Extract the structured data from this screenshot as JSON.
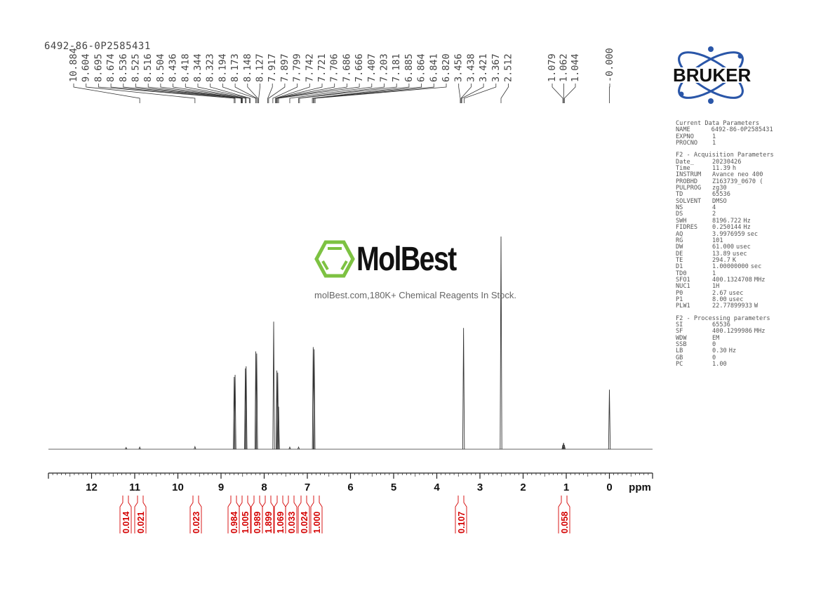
{
  "sample_name": "6492-86-0P2585431",
  "logo": {
    "brand": "BRUKER",
    "watermark": "MolBest",
    "watermark_tagline": "molBest.com,180K+ Chemical Reagents In Stock."
  },
  "parameters": {
    "current": {
      "title": "Current Data Parameters",
      "rows": [
        {
          "name": "NAME",
          "value": "6492-86-0P2585431",
          "unit": ""
        },
        {
          "name": "EXPNO",
          "value": "1",
          "unit": ""
        },
        {
          "name": "PROCNO",
          "value": "1",
          "unit": ""
        }
      ]
    },
    "acquisition": {
      "title": "F2 - Acquisition Parameters",
      "rows": [
        {
          "name": "Date_",
          "value": "20230426",
          "unit": ""
        },
        {
          "name": "Time",
          "value": "11.39",
          "unit": "h"
        },
        {
          "name": "INSTRUM",
          "value": "Avance neo 400",
          "unit": ""
        },
        {
          "name": "PROBHD",
          "value": "Z163739_0670 (",
          "unit": ""
        },
        {
          "name": "PULPROG",
          "value": "zg30",
          "unit": ""
        },
        {
          "name": "TD",
          "value": "65536",
          "unit": ""
        },
        {
          "name": "SOLVENT",
          "value": "DMSO",
          "unit": ""
        },
        {
          "name": "NS",
          "value": "4",
          "unit": ""
        },
        {
          "name": "DS",
          "value": "2",
          "unit": ""
        },
        {
          "name": "SWH",
          "value": "8196.722",
          "unit": "Hz"
        },
        {
          "name": "FIDRES",
          "value": "0.250144",
          "unit": "Hz"
        },
        {
          "name": "AQ",
          "value": "3.9976959",
          "unit": "sec"
        },
        {
          "name": "RG",
          "value": "101",
          "unit": ""
        },
        {
          "name": "DW",
          "value": "61.000",
          "unit": "usec"
        },
        {
          "name": "DE",
          "value": "13.89",
          "unit": "usec"
        },
        {
          "name": "TE",
          "value": "294.7",
          "unit": "K"
        },
        {
          "name": "D1",
          "value": "1.00000000",
          "unit": "sec"
        },
        {
          "name": "TD0",
          "value": "1",
          "unit": ""
        },
        {
          "name": "SFO1",
          "value": "400.1324708",
          "unit": "MHz"
        },
        {
          "name": "NUC1",
          "value": "1H",
          "unit": ""
        },
        {
          "name": "P0",
          "value": "2.67",
          "unit": "usec"
        },
        {
          "name": "P1",
          "value": "8.00",
          "unit": "usec"
        },
        {
          "name": "PLW1",
          "value": "22.77899933",
          "unit": "W"
        }
      ]
    },
    "processing": {
      "title": "F2 - Processing parameters",
      "rows": [
        {
          "name": "SI",
          "value": "65536",
          "unit": ""
        },
        {
          "name": "SF",
          "value": "400.1299986",
          "unit": "MHz"
        },
        {
          "name": "WDW",
          "value": "EM",
          "unit": ""
        },
        {
          "name": "SSB",
          "value": "0",
          "unit": ""
        },
        {
          "name": "LB",
          "value": "0.30",
          "unit": "Hz"
        },
        {
          "name": "GB",
          "value": "0",
          "unit": ""
        },
        {
          "name": "PC",
          "value": "1.00",
          "unit": ""
        }
      ]
    }
  },
  "chart_data": {
    "type": "line",
    "title": "",
    "xlabel": "ppm",
    "xlim": [
      13,
      -1
    ],
    "x_reversed": true,
    "x_ticks": [
      "12",
      "11",
      "10",
      "9",
      "8",
      "7",
      "6",
      "5",
      "4",
      "3",
      "2",
      "1",
      "0"
    ],
    "grid": false,
    "colors": {
      "spectrum": "#333333",
      "integral": "#d40000",
      "labels": "#444444"
    },
    "peaks": [
      {
        "ppm": 11.2,
        "intensity": 0.008
      },
      {
        "ppm": 10.884,
        "intensity": 0.01
      },
      {
        "ppm": 9.604,
        "intensity": 0.012
      },
      {
        "ppm": 8.695,
        "intensity": 0.34
      },
      {
        "ppm": 8.674,
        "intensity": 0.35
      },
      {
        "ppm": 8.436,
        "intensity": 0.38
      },
      {
        "ppm": 8.418,
        "intensity": 0.39
      },
      {
        "ppm": 8.194,
        "intensity": 0.46
      },
      {
        "ppm": 8.173,
        "intensity": 0.45
      },
      {
        "ppm": 7.78,
        "intensity": 0.6
      },
      {
        "ppm": 7.706,
        "intensity": 0.37
      },
      {
        "ppm": 7.686,
        "intensity": 0.36
      },
      {
        "ppm": 7.666,
        "intensity": 0.2
      },
      {
        "ppm": 7.407,
        "intensity": 0.01
      },
      {
        "ppm": 7.203,
        "intensity": 0.01
      },
      {
        "ppm": 6.864,
        "intensity": 0.48
      },
      {
        "ppm": 6.841,
        "intensity": 0.47
      },
      {
        "ppm": 3.38,
        "intensity": 0.57
      },
      {
        "ppm": 2.512,
        "intensity": 1.0
      },
      {
        "ppm": 1.079,
        "intensity": 0.02
      },
      {
        "ppm": 1.062,
        "intensity": 0.03
      },
      {
        "ppm": 1.044,
        "intensity": 0.02
      },
      {
        "ppm": 0.0,
        "intensity": 0.28
      }
    ],
    "peak_labels": [
      "10.884",
      "9.604",
      "8.695",
      "8.674",
      "8.536",
      "8.525",
      "8.516",
      "8.504",
      "8.436",
      "8.418",
      "8.344",
      "8.323",
      "8.194",
      "8.173",
      "8.148",
      "8.127",
      "7.917",
      "7.897",
      "7.799",
      "7.742",
      "7.721",
      "7.706",
      "7.686",
      "7.666",
      "7.407",
      "7.203",
      "7.181",
      "6.885",
      "6.864",
      "6.841",
      "6.820",
      "3.456",
      "3.438",
      "3.421",
      "3.367",
      "2.512"
    ],
    "peak_labels_right": [
      "1.079",
      "1.062",
      "1.044"
    ],
    "peak_label_zero": "-0.000",
    "integrals": [
      {
        "ppm": 11.2,
        "value": "0.014"
      },
      {
        "ppm": 10.88,
        "value": "0.021"
      },
      {
        "ppm": 9.6,
        "value": "0.023"
      },
      {
        "ppm": 8.68,
        "value": "0.984"
      },
      {
        "ppm": 8.43,
        "value": "1.005"
      },
      {
        "ppm": 8.18,
        "value": "0.989"
      },
      {
        "ppm": 7.78,
        "value": "1.899"
      },
      {
        "ppm": 7.69,
        "value": "1.069"
      },
      {
        "ppm": 7.41,
        "value": "0.033"
      },
      {
        "ppm": 7.2,
        "value": "0.024"
      },
      {
        "ppm": 6.85,
        "value": "1.000"
      },
      {
        "ppm": 3.4,
        "value": "0.107"
      },
      {
        "ppm": 1.06,
        "value": "0.058"
      }
    ]
  }
}
